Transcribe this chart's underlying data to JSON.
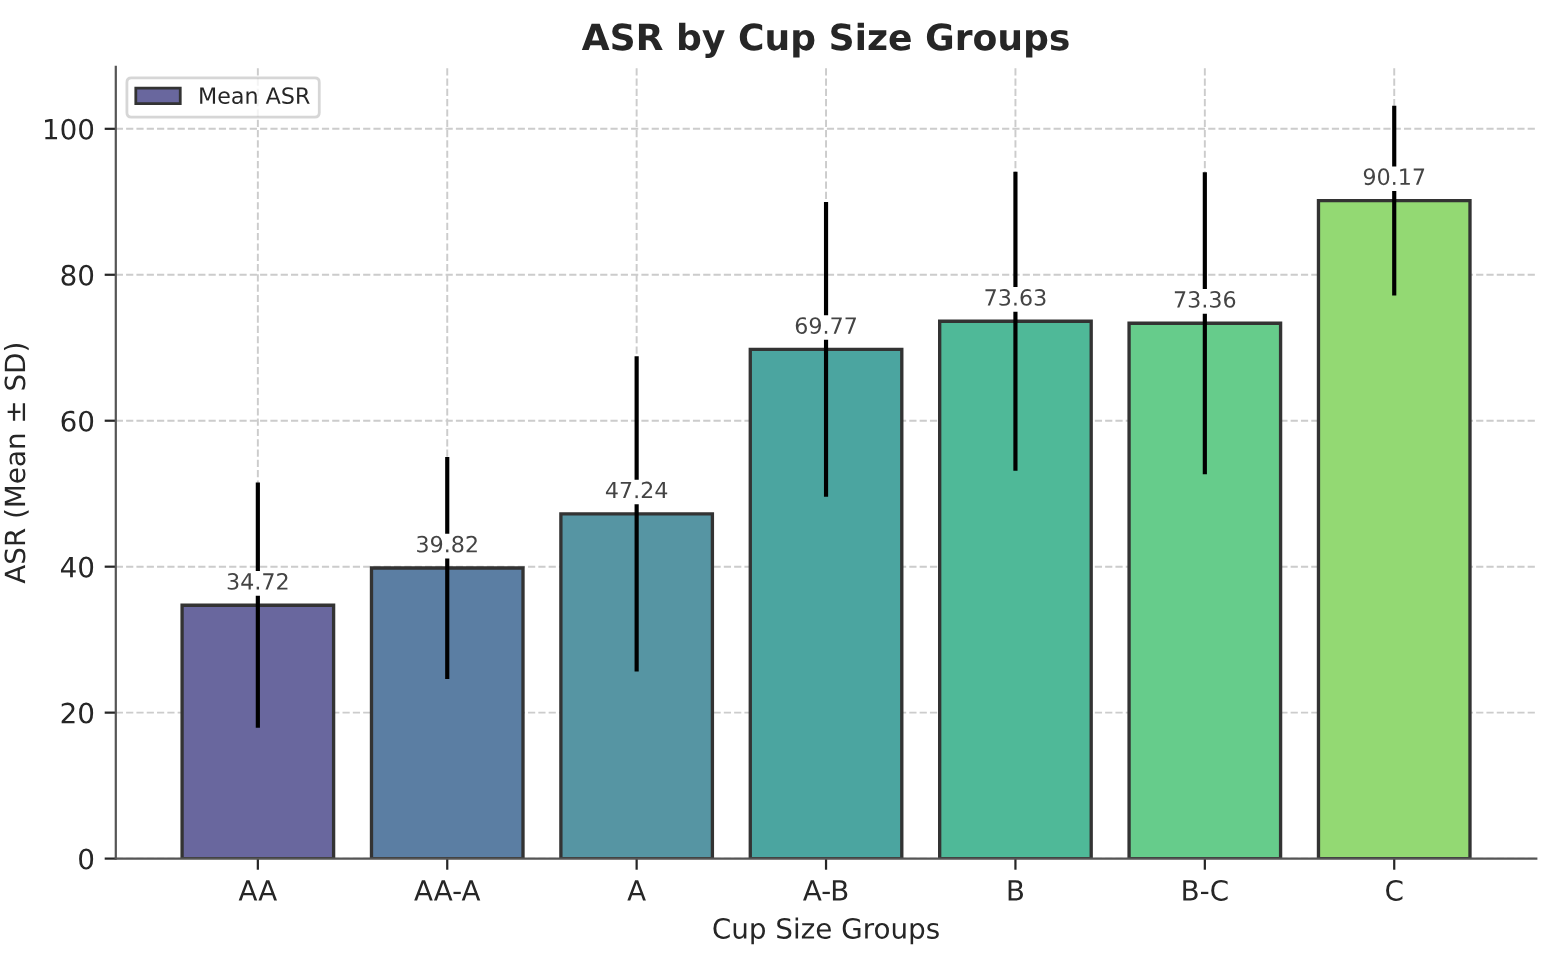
{
  "chart_data": {
    "type": "bar",
    "title": "ASR by Cup Size Groups",
    "xlabel": "Cup Size Groups",
    "ylabel": "ASR (Mean ± SD)",
    "categories": [
      "AA",
      "AA-A",
      "A",
      "A-B",
      "B",
      "B-C",
      "C"
    ],
    "series": [
      {
        "name": "Mean ASR",
        "values": [
          34.72,
          39.82,
          47.24,
          69.77,
          73.63,
          73.36,
          90.17
        ],
        "colors": [
          "#69679e",
          "#5b7ea3",
          "#5695a3",
          "#4ba5a0",
          "#4fb998",
          "#66cc8b",
          "#93d973"
        ],
        "errors": [
          16.8,
          15.2,
          21.6,
          20.2,
          20.5,
          20.7,
          13.0
        ]
      }
    ],
    "ylim": [
      0,
      108.5
    ],
    "yticks": [
      0,
      20,
      40,
      60,
      80,
      100
    ],
    "grid": true,
    "legend": "top left",
    "data_labels": true
  }
}
